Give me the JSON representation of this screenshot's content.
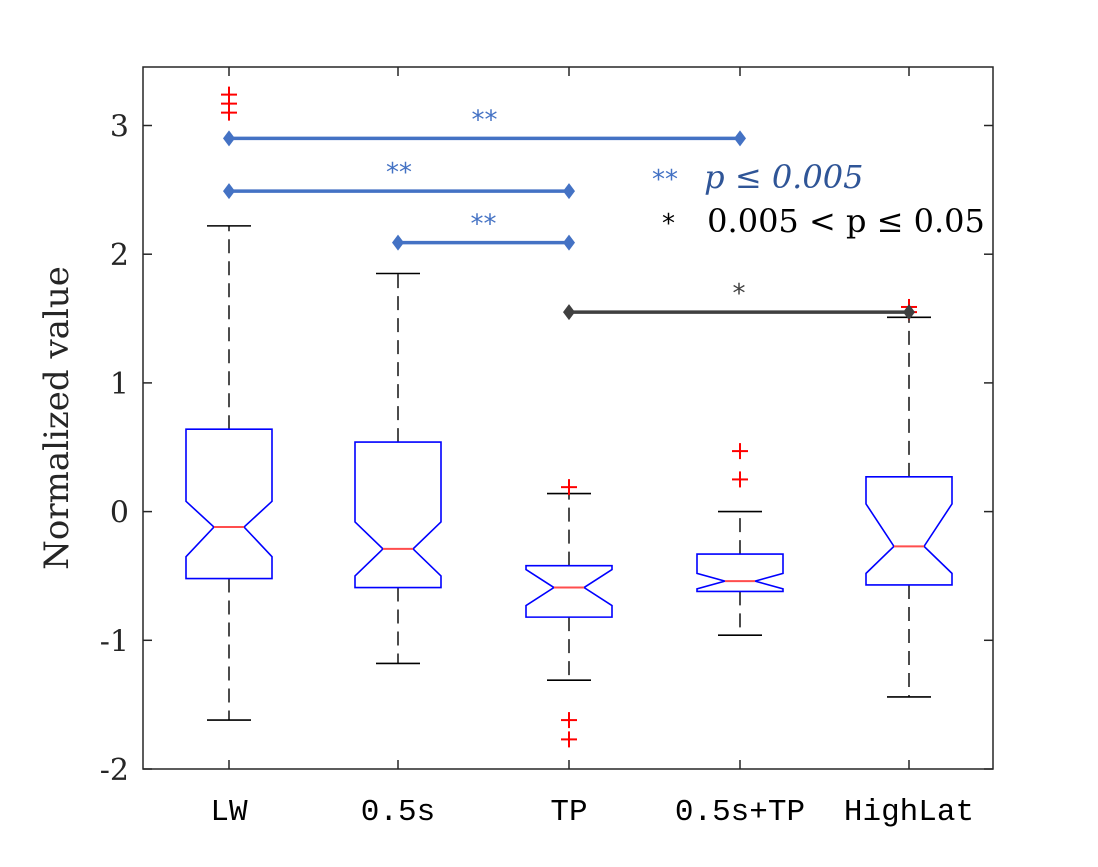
{
  "chart_data": {
    "type": "boxplot",
    "title": "",
    "xlabel": "",
    "ylabel": "Normalized value",
    "ylim": [
      -2,
      3.5
    ],
    "yticks": [
      -2,
      -1,
      0,
      1,
      2,
      3
    ],
    "ytick_labels": [
      "-2",
      "-1",
      "0",
      "1",
      "2",
      "3"
    ],
    "categories": [
      "LW",
      "0.5s",
      "TP",
      "0.5s+TP",
      "HighLat"
    ],
    "box_color": "#0000ff",
    "median_color": "#ff4d4d",
    "outlier_color": "#ff0000",
    "boxes": [
      {
        "name": "LW",
        "whisker_low": -1.62,
        "q1": -0.52,
        "notch_low": -0.35,
        "median": -0.12,
        "notch_high": 0.08,
        "q3": 0.64,
        "whisker_high": 2.22,
        "outliers": [
          3.1,
          3.17,
          3.24
        ]
      },
      {
        "name": "0.5s",
        "whisker_low": -1.18,
        "q1": -0.59,
        "notch_low": -0.5,
        "median": -0.29,
        "notch_high": -0.08,
        "q3": 0.54,
        "whisker_high": 1.85,
        "outliers": []
      },
      {
        "name": "TP",
        "whisker_low": -1.31,
        "q1": -0.82,
        "notch_low": -0.73,
        "median": -0.59,
        "notch_high": -0.45,
        "q3": -0.42,
        "whisker_high": 0.14,
        "outliers": [
          0.19,
          -1.62,
          -1.77
        ]
      },
      {
        "name": "0.5s+TP",
        "whisker_low": -0.96,
        "q1": -0.62,
        "notch_low": -0.6,
        "median": -0.54,
        "notch_high": -0.48,
        "q3": -0.33,
        "whisker_high": 0.0,
        "outliers": [
          0.25,
          0.47
        ]
      },
      {
        "name": "HighLat",
        "whisker_low": -1.44,
        "q1": -0.57,
        "notch_low": -0.48,
        "median": -0.27,
        "notch_high": 0.06,
        "q3": 0.27,
        "whisker_high": 1.51,
        "outliers": [
          1.55,
          1.59
        ]
      }
    ],
    "significance_bars": [
      {
        "from": "LW",
        "to": "0.5s+TP",
        "y": 2.9,
        "label": "**",
        "color": "#4472c4"
      },
      {
        "from": "LW",
        "to": "TP",
        "y": 2.49,
        "label": "**",
        "color": "#4472c4"
      },
      {
        "from": "0.5s",
        "to": "TP",
        "y": 2.09,
        "label": "**",
        "color": "#4472c4"
      },
      {
        "from": "TP",
        "to": "HighLat",
        "y": 1.55,
        "label": "*",
        "color": "#404040"
      }
    ],
    "legend": {
      "position": "top-right",
      "entries": [
        {
          "symbol": "**",
          "text": "p ≤ 0.005",
          "color": "#2f5597"
        },
        {
          "symbol": "*",
          "text": "0.005 < p ≤ 0.05",
          "color": "#000000"
        }
      ]
    }
  }
}
